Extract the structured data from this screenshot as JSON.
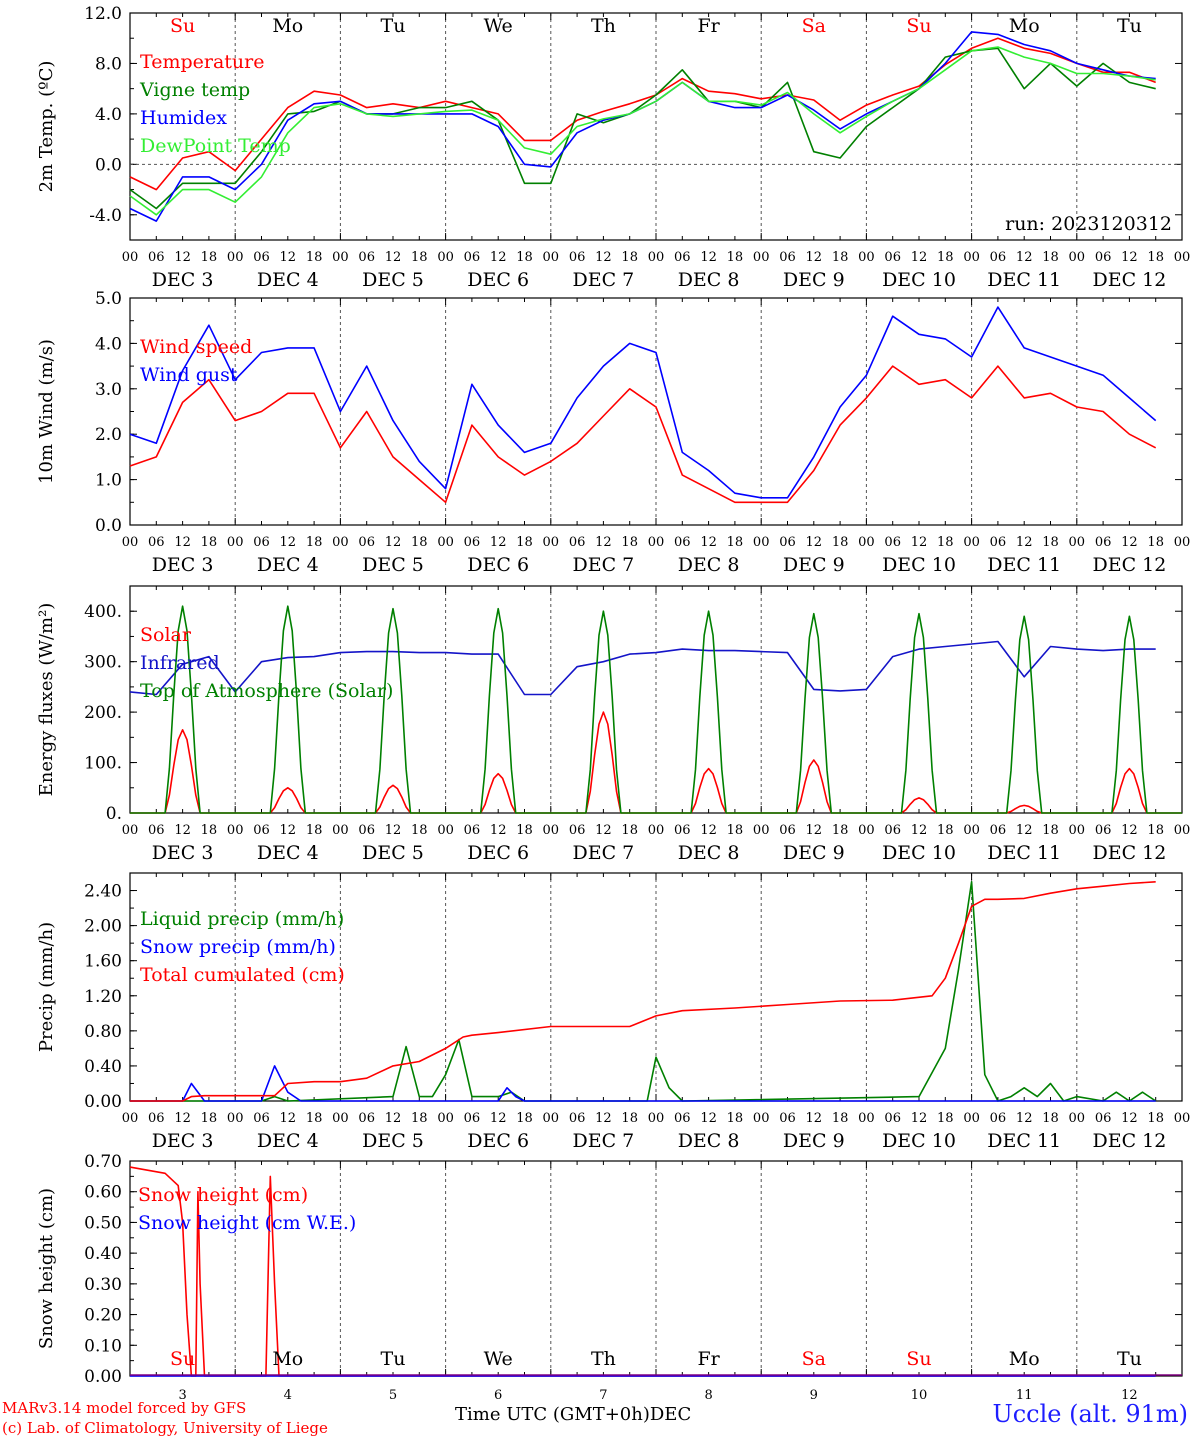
{
  "days_of_week": [
    "Su",
    "Mo",
    "Tu",
    "We",
    "Th",
    "Fr",
    "Sa",
    "Su",
    "Mo",
    "Tu"
  ],
  "weekend_flags": [
    true,
    false,
    false,
    false,
    false,
    false,
    true,
    true,
    false,
    false
  ],
  "date_labels": [
    "DEC  3",
    "DEC  4",
    "DEC  5",
    "DEC  6",
    "DEC  7",
    "DEC  8",
    "DEC  9",
    "DEC 10",
    "DEC 11",
    "DEC 12"
  ],
  "hour_ticks": [
    "00",
    "06",
    "12",
    "18"
  ],
  "hour_ticks_final": "00",
  "bottom_day_numbers": [
    "3",
    "4",
    "5",
    "6",
    "7",
    "8",
    "9",
    "10",
    "11",
    "12"
  ],
  "footer": {
    "credit_line1": "MARv3.14 model forced by GFS",
    "credit_line2": "(c) Lab. of Climatology, University of Liege",
    "xaxis_label": "Time UTC (GMT+0h)",
    "month": "DEC",
    "station": "Uccle (alt. 91m)"
  },
  "colors": {
    "red": "#ff0000",
    "dark_green": "#008000",
    "blue": "#0000ff",
    "light_green": "#33ee33",
    "navy": "#1414c8",
    "purple": "#800080",
    "frame": "#000000"
  },
  "chart_data": [
    {
      "type": "line",
      "ylabel": "2m Temp. (ºC)",
      "annotation": "run: 2023120312",
      "ylim": [
        -6,
        12
      ],
      "yticks": [
        "12.0",
        "8.0",
        "4.0",
        "0.0",
        "-4.0"
      ],
      "yticks_values": [
        12,
        8,
        4,
        0,
        -4
      ],
      "x_unit": "hours since DEC 3 00 UTC",
      "zero_line": true,
      "series": [
        {
          "name": "Temperature",
          "color": "red",
          "x": [
            0,
            6,
            12,
            18,
            24,
            30,
            36,
            42,
            48,
            54,
            60,
            66,
            72,
            78,
            84,
            90,
            96,
            102,
            108,
            114,
            120,
            126,
            132,
            138,
            144,
            150,
            156,
            162,
            168,
            174,
            180,
            186,
            192,
            198,
            204,
            210,
            216,
            222,
            228,
            234
          ],
          "y": [
            -1,
            -2,
            0.5,
            1,
            -0.5,
            2,
            4.5,
            5.8,
            5.5,
            4.5,
            4.8,
            4.5,
            5,
            4.5,
            4,
            1.9,
            1.9,
            3.5,
            4.2,
            4.8,
            5.5,
            6.8,
            5.8,
            5.6,
            5.2,
            5.5,
            5.1,
            3.5,
            4.7,
            5.5,
            6.2,
            7.9,
            9.2,
            10,
            9.2,
            8.8,
            8,
            7.3,
            7.3,
            6.5
          ]
        },
        {
          "name": "Vigne temp",
          "color": "dark_green",
          "x": [
            0,
            6,
            12,
            18,
            24,
            30,
            36,
            42,
            48,
            54,
            60,
            66,
            72,
            78,
            84,
            90,
            96,
            102,
            108,
            114,
            120,
            126,
            132,
            138,
            144,
            150,
            156,
            162,
            168,
            174,
            180,
            186,
            192,
            198,
            204,
            210,
            216,
            222,
            228,
            234
          ],
          "y": [
            -2,
            -3.5,
            -1.5,
            -1.5,
            -1.5,
            1,
            4,
            4.2,
            5,
            4,
            4,
            4.5,
            4.5,
            5,
            3.5,
            -1.5,
            -1.5,
            4,
            3.3,
            4,
            5.5,
            7.5,
            5,
            5,
            4.5,
            6.5,
            1,
            0.5,
            3,
            4.5,
            6,
            8.5,
            9,
            9.2,
            6,
            8,
            6.2,
            8,
            6.5,
            6
          ]
        },
        {
          "name": "Humidex",
          "color": "blue",
          "x": [
            0,
            6,
            12,
            18,
            24,
            30,
            36,
            42,
            48,
            54,
            60,
            66,
            72,
            78,
            84,
            90,
            96,
            102,
            108,
            114,
            120,
            126,
            132,
            138,
            144,
            150,
            156,
            162,
            168,
            174,
            180,
            186,
            192,
            198,
            204,
            210,
            216,
            222,
            228,
            234
          ],
          "y": [
            -3.5,
            -4.5,
            -1,
            -1,
            -2,
            0,
            3.5,
            4.8,
            5,
            4,
            4,
            4,
            4,
            4,
            3,
            0,
            -0.2,
            2.5,
            3.5,
            4,
            5,
            6.5,
            5,
            4.5,
            4.5,
            5.5,
            4.3,
            2.8,
            4,
            5,
            6,
            8,
            10.5,
            10.3,
            9.5,
            9,
            8,
            7.5,
            7,
            6.8
          ]
        },
        {
          "name": "DewPoint Temp",
          "color": "light_green",
          "x": [
            0,
            6,
            12,
            18,
            24,
            30,
            36,
            42,
            48,
            54,
            60,
            66,
            72,
            78,
            84,
            90,
            96,
            102,
            108,
            114,
            120,
            126,
            132,
            138,
            144,
            150,
            156,
            162,
            168,
            174,
            180,
            186,
            192,
            198,
            204,
            210,
            216,
            222,
            228,
            234
          ],
          "y": [
            -2.5,
            -4,
            -2,
            -2,
            -3,
            -1,
            2.5,
            4.5,
            4.8,
            4,
            3.8,
            4,
            4.2,
            4.3,
            3.5,
            1.3,
            0.8,
            3,
            3.6,
            4,
            5,
            6.5,
            5,
            5,
            4.7,
            5.7,
            4,
            2.5,
            3.8,
            5,
            6,
            7.5,
            9,
            9.3,
            8.5,
            8,
            7.2,
            7.2,
            7,
            6.7
          ]
        }
      ]
    },
    {
      "type": "line",
      "ylabel": "10m Wind (m/s)",
      "ylim": [
        0,
        5
      ],
      "yticks": [
        "5.0",
        "4.0",
        "3.0",
        "2.0",
        "1.0",
        "0.0"
      ],
      "yticks_values": [
        5,
        4,
        3,
        2,
        1,
        0
      ],
      "x_unit": "hours since DEC 3 00 UTC",
      "series": [
        {
          "name": "Wind speed",
          "color": "red",
          "x": [
            0,
            6,
            12,
            18,
            24,
            30,
            36,
            42,
            48,
            54,
            60,
            66,
            72,
            78,
            84,
            90,
            96,
            102,
            108,
            114,
            120,
            126,
            132,
            138,
            144,
            150,
            156,
            162,
            168,
            174,
            180,
            186,
            192,
            198,
            204,
            210,
            216,
            222,
            228,
            234
          ],
          "y": [
            1.3,
            1.5,
            2.7,
            3.2,
            2.3,
            2.5,
            2.9,
            2.9,
            1.7,
            2.5,
            1.5,
            1,
            0.5,
            2.2,
            1.5,
            1.1,
            1.4,
            1.8,
            2.4,
            3,
            2.6,
            1.1,
            0.8,
            0.5,
            0.5,
            0.5,
            1.2,
            2.2,
            2.8,
            3.5,
            3.1,
            3.2,
            2.8,
            3.5,
            2.8,
            2.9,
            2.6,
            2.5,
            2,
            1.7
          ]
        },
        {
          "name": "Wind gust",
          "color": "blue",
          "x": [
            0,
            6,
            12,
            18,
            24,
            30,
            36,
            42,
            48,
            54,
            60,
            66,
            72,
            78,
            84,
            90,
            96,
            102,
            108,
            114,
            120,
            126,
            132,
            138,
            144,
            150,
            156,
            162,
            168,
            174,
            180,
            186,
            192,
            198,
            204,
            210,
            216,
            222,
            228,
            234
          ],
          "y": [
            2,
            1.8,
            3.4,
            4.4,
            3.2,
            3.8,
            3.9,
            3.9,
            2.5,
            3.5,
            2.3,
            1.4,
            0.8,
            3.1,
            2.2,
            1.6,
            1.8,
            2.8,
            3.5,
            4,
            3.8,
            1.6,
            1.2,
            0.7,
            0.6,
            0.6,
            1.5,
            2.6,
            3.3,
            4.6,
            4.2,
            4.1,
            3.7,
            4.8,
            3.9,
            3.7,
            3.5,
            3.3,
            2.8,
            2.3
          ]
        }
      ]
    },
    {
      "type": "line",
      "ylabel": "Energy fluxes (W/m²)",
      "ylim": [
        0,
        450
      ],
      "yticks": [
        "400.",
        "300.",
        "200.",
        "100.",
        "0."
      ],
      "yticks_values": [
        400,
        300,
        200,
        100,
        0
      ],
      "x_unit": "hours since DEC 3 00 UTC",
      "series": [
        {
          "name": "Solar",
          "color": "red",
          "daily_peak": [
            165,
            50,
            55,
            78,
            200,
            88,
            105,
            30,
            15,
            88
          ],
          "daylight_hours": [
            8,
            16
          ]
        },
        {
          "name": "Infrared",
          "color": "navy",
          "x": [
            0,
            6,
            12,
            18,
            24,
            30,
            36,
            42,
            48,
            54,
            60,
            66,
            72,
            78,
            84,
            90,
            96,
            102,
            108,
            114,
            120,
            126,
            132,
            138,
            144,
            150,
            156,
            162,
            168,
            174,
            180,
            186,
            192,
            198,
            204,
            210,
            216,
            222,
            228,
            234
          ],
          "y": [
            240,
            235,
            295,
            310,
            240,
            300,
            308,
            310,
            318,
            320,
            320,
            318,
            318,
            315,
            315,
            235,
            235,
            290,
            300,
            315,
            318,
            325,
            322,
            322,
            320,
            318,
            245,
            242,
            245,
            310,
            325,
            330,
            335,
            340,
            270,
            330,
            325,
            322,
            325,
            325
          ]
        },
        {
          "name": "Top of Atmosphere (Solar)",
          "color": "dark_green",
          "daily_peak": [
            410,
            410,
            405,
            405,
            400,
            400,
            395,
            395,
            390,
            390
          ],
          "daylight_hours": [
            8,
            16
          ]
        }
      ]
    },
    {
      "type": "line",
      "ylabel": "Precip (mm/h)",
      "ylim": [
        0,
        2.6
      ],
      "yticks": [
        "2.40",
        "2.00",
        "1.60",
        "1.20",
        "0.80",
        "0.40",
        "0.00"
      ],
      "yticks_values": [
        2.4,
        2.0,
        1.6,
        1.2,
        0.8,
        0.4,
        0
      ],
      "x_unit": "hours since DEC 3 00 UTC",
      "series": [
        {
          "name": "Liquid precip (mm/h)",
          "color": "dark_green",
          "x": [
            0,
            30,
            33,
            36,
            60,
            63,
            66,
            69,
            72,
            75,
            78,
            81,
            84,
            87,
            90,
            118,
            120,
            123,
            126,
            180,
            186,
            189,
            192,
            195,
            198,
            201,
            204,
            207,
            210,
            213,
            216,
            222,
            225,
            228,
            231,
            234
          ],
          "y": [
            0,
            0,
            0.05,
            0,
            0.05,
            0.62,
            0.05,
            0.05,
            0.3,
            0.7,
            0.05,
            0.05,
            0.05,
            0.1,
            0,
            0,
            0.5,
            0.15,
            0,
            0.05,
            0.6,
            1.5,
            2.5,
            0.3,
            0,
            0.05,
            0.15,
            0.05,
            0.2,
            0,
            0.05,
            0,
            0.1,
            0,
            0.1,
            0
          ]
        },
        {
          "name": "Snow precip (mm/h)",
          "color": "blue",
          "x": [
            0,
            12,
            14,
            17,
            20,
            30,
            33,
            36,
            39,
            42,
            84,
            86,
            88,
            90,
            234
          ],
          "y": [
            0,
            0,
            0.2,
            0,
            0,
            0,
            0.4,
            0.1,
            0,
            0,
            0,
            0.15,
            0.05,
            0,
            0
          ]
        },
        {
          "name": "Total cumulated (cm)",
          "color": "red",
          "x": [
            0,
            12,
            14,
            17,
            33,
            36,
            42,
            48,
            54,
            60,
            66,
            72,
            76,
            78,
            84,
            96,
            108,
            114,
            120,
            126,
            138,
            150,
            162,
            174,
            183,
            186,
            189,
            192,
            195,
            198,
            204,
            210,
            216,
            222,
            228,
            234
          ],
          "y": [
            0,
            0,
            0.05,
            0.06,
            0.06,
            0.2,
            0.22,
            0.22,
            0.26,
            0.4,
            0.45,
            0.6,
            0.73,
            0.75,
            0.78,
            0.85,
            0.85,
            0.85,
            0.97,
            1.03,
            1.06,
            1.1,
            1.14,
            1.15,
            1.2,
            1.4,
            1.8,
            2.22,
            2.3,
            2.3,
            2.31,
            2.37,
            2.42,
            2.45,
            2.48,
            2.5
          ]
        }
      ]
    },
    {
      "type": "line",
      "ylabel": "Snow height (cm)",
      "ylim": [
        0,
        0.7
      ],
      "yticks": [
        "0.70",
        "0.60",
        "0.50",
        "0.40",
        "0.30",
        "0.20",
        "0.10",
        "0.00"
      ],
      "yticks_values": [
        0.7,
        0.6,
        0.5,
        0.4,
        0.3,
        0.2,
        0.1,
        0
      ],
      "x_unit": "hours since DEC 3 00 UTC",
      "series": [
        {
          "name": "Snow height (cm)",
          "color": "red",
          "x": [
            0,
            4,
            8,
            11,
            12,
            13,
            14,
            15,
            15.5,
            16,
            17,
            31,
            32,
            33,
            34,
            35,
            36,
            37,
            234
          ],
          "y": [
            0.68,
            0.67,
            0.66,
            0.62,
            0.5,
            0.2,
            0,
            0,
            0.6,
            0.3,
            0,
            0,
            0.65,
            0.3,
            0,
            0,
            0,
            0,
            0
          ]
        },
        {
          "name": "Snow height (cm W.E.)",
          "color": "blue",
          "x": [
            0,
            234
          ],
          "y": [
            0,
            0
          ]
        }
      ]
    }
  ]
}
